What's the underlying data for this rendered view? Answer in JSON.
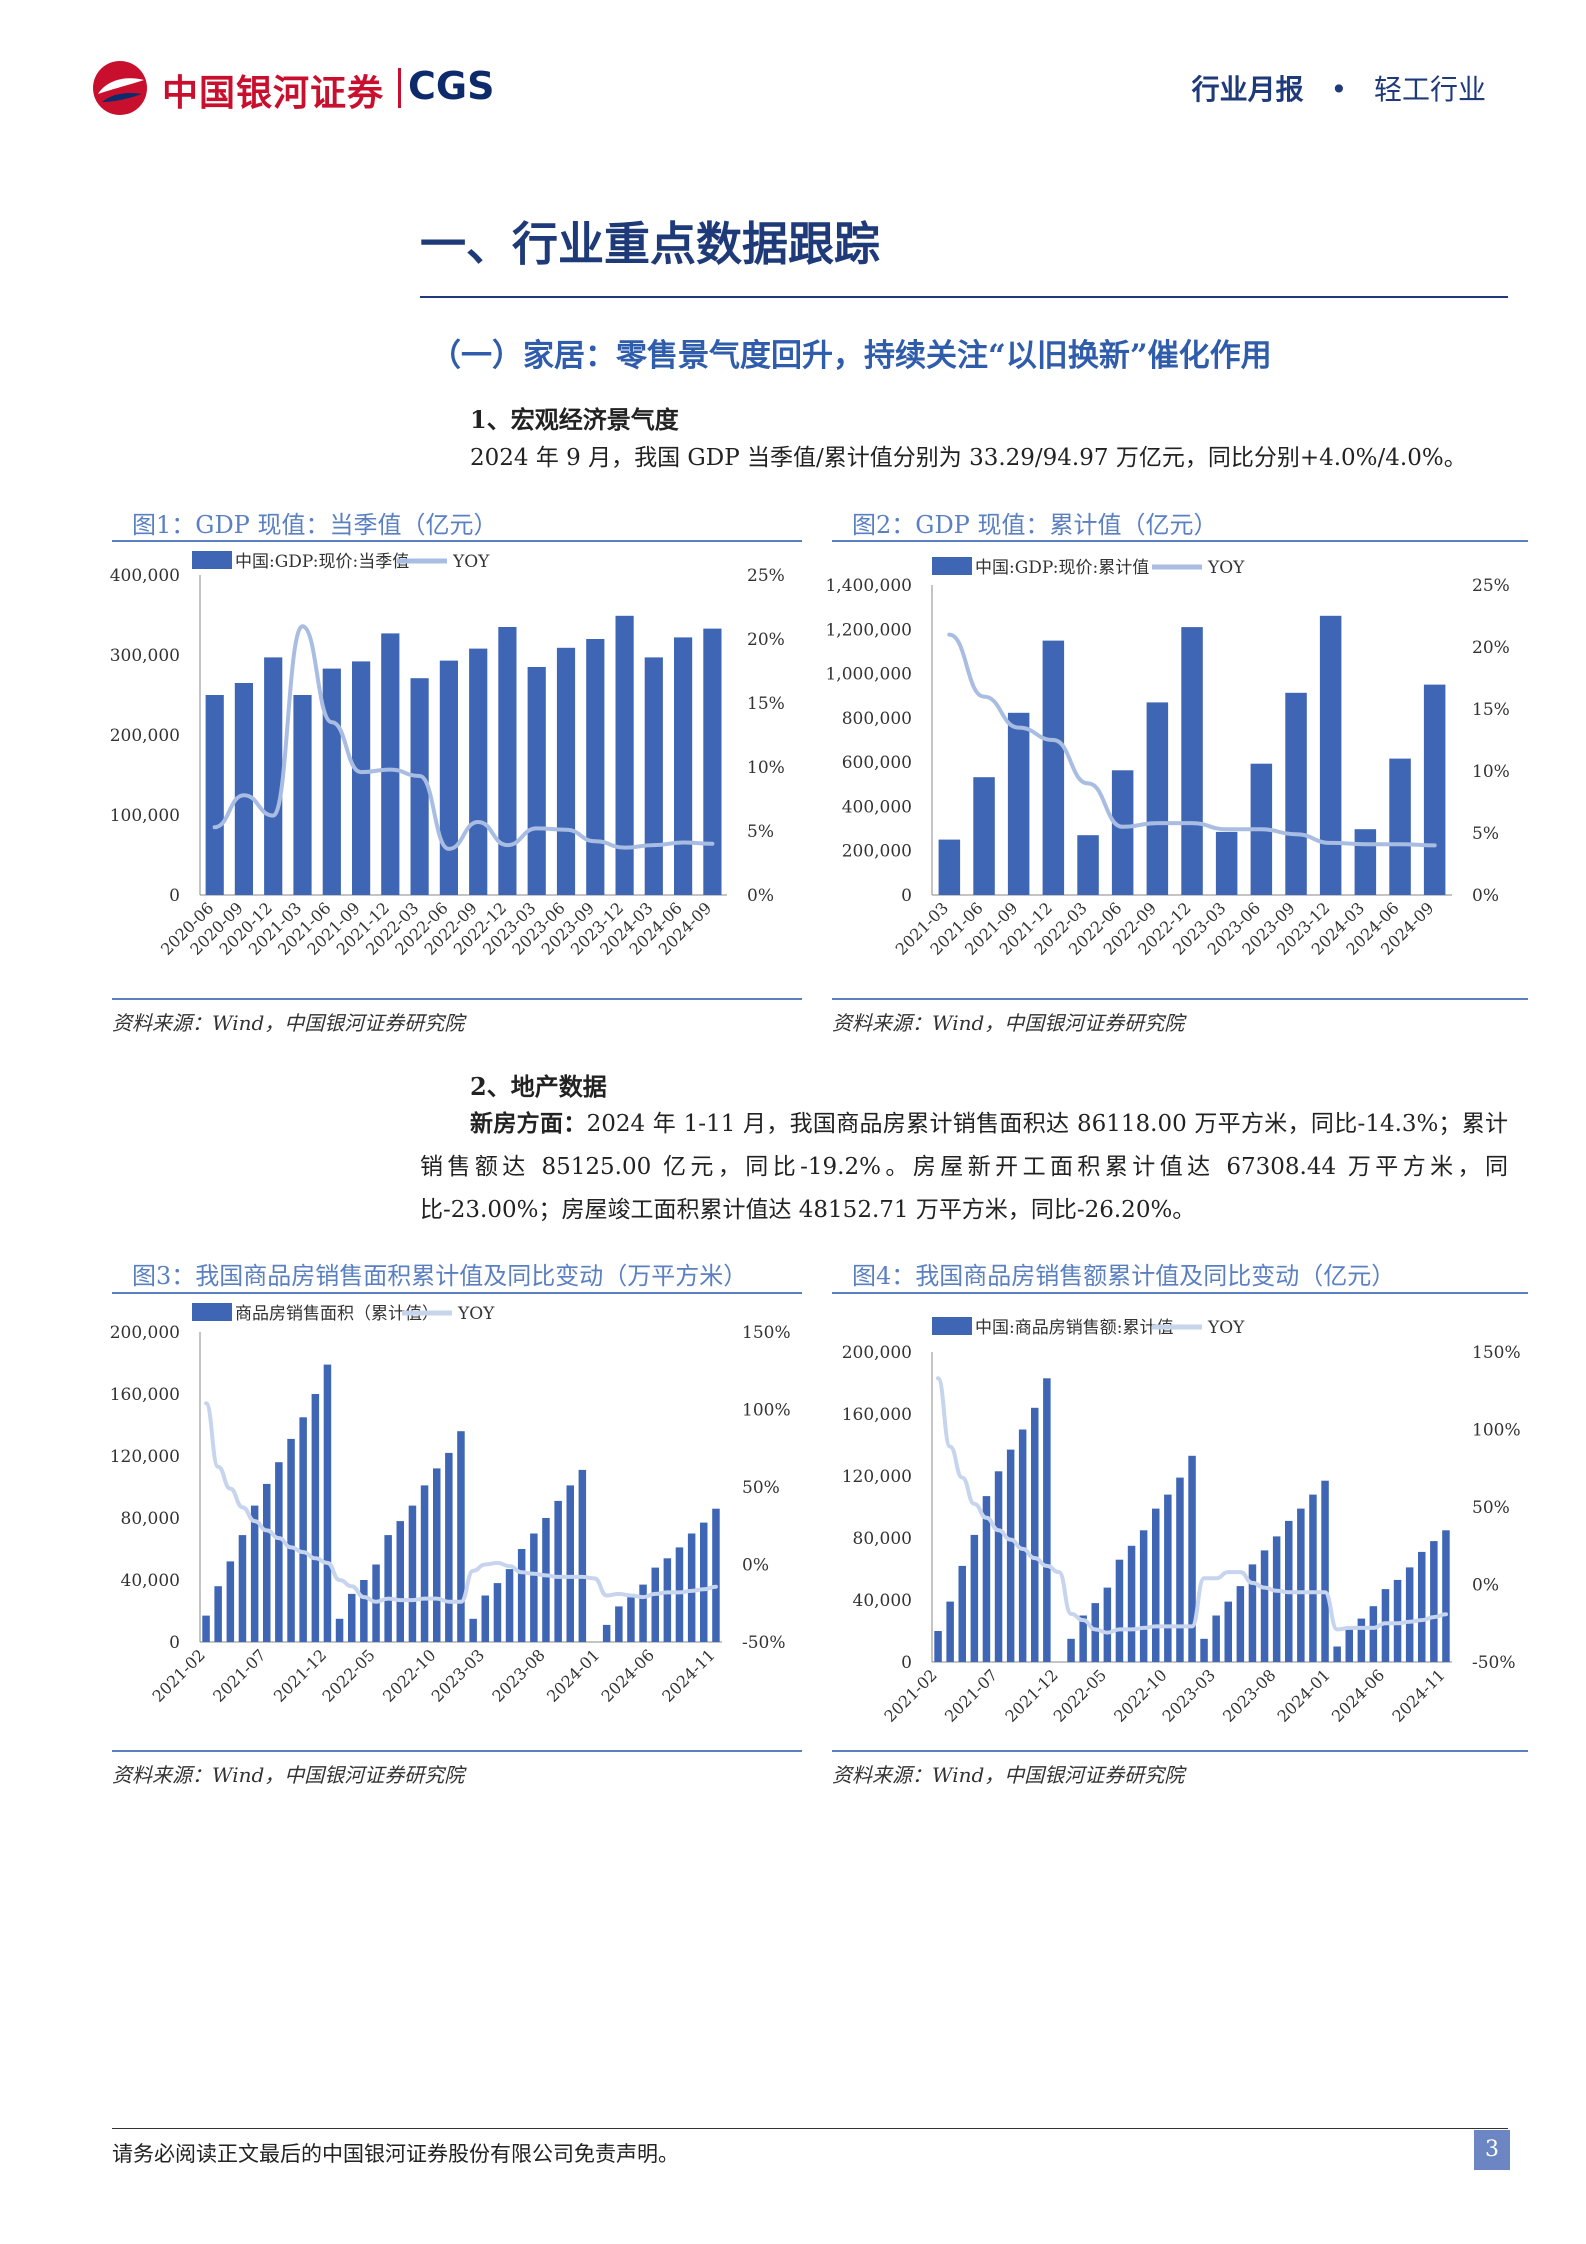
{
  "header": {
    "logo_cn": "中国银河证券",
    "logo_en": "CGS",
    "report_type": "行业月报",
    "dot": "•",
    "industry": "轻工行业"
  },
  "section1": {
    "title": "一、行业重点数据跟踪"
  },
  "section1_1": {
    "title": "（一）家居：零售景气度回升，持续关注“以旧换新”催化作用"
  },
  "sub1": {
    "title": "1、宏观经济景气度",
    "text": "2024 年 9 月，我国 GDP 当季值/累计值分别为 33.29/94.97 万亿元，同比分别+4.0%/4.0%。"
  },
  "fig1": {
    "title": "图1：GDP 现值：当季值（亿元）",
    "source": "资料来源：Wind，中国银河证券研究院"
  },
  "fig2": {
    "title": "图2：GDP 现值：累计值（亿元）",
    "source": "资料来源：Wind，中国银河证券研究院"
  },
  "sub2": {
    "title": "2、地产数据",
    "lead": "新房方面：",
    "text": "2024 年 1-11 月，我国商品房累计销售面积达 86118.00 万平方米，同比-14.3%；累计销售额达 85125.00 亿元，同比-19.2%。房屋新开工面积累计值达 67308.44 万平方米，同比-23.00%；房屋竣工面积累计值达 48152.71 万平方米，同比-26.20%。"
  },
  "fig3": {
    "title": "图3：我国商品房销售面积累计值及同比变动（万平方米）",
    "source": "资料来源：Wind，中国银河证券研究院"
  },
  "fig4": {
    "title": "图4：我国商品房销售额累计值及同比变动（亿元）",
    "source": "资料来源：Wind，中国银河证券研究院"
  },
  "footer": {
    "disclaimer": "请务必阅读正文最后的中国银河证券股份有限公司免责声明。",
    "page": "3"
  },
  "chart_data": [
    {
      "id": "chart1",
      "type": "bar",
      "bar_color": "#3f66b5",
      "line_color": "#a9bde3",
      "categories": [
        "2020-06",
        "2020-09",
        "2020-12",
        "2021-03",
        "2021-06",
        "2021-09",
        "2021-12",
        "2022-03",
        "2022-06",
        "2022-09",
        "2022-12",
        "2023-03",
        "2023-06",
        "2023-09",
        "2023-12",
        "2024-03",
        "2024-06",
        "2024-09"
      ],
      "series": [
        {
          "name": "中国:GDP:现价:当季值",
          "axis": "left",
          "kind": "bar",
          "values": [
            250000,
            265000,
            297000,
            250000,
            283000,
            292000,
            327000,
            271000,
            293000,
            308000,
            335000,
            285000,
            309000,
            320000,
            349000,
            297000,
            322000,
            333000
          ]
        },
        {
          "name": "YOY",
          "axis": "right",
          "kind": "line",
          "values": [
            5.3,
            7.8,
            6.2,
            21,
            13.5,
            9.6,
            9.8,
            9.3,
            3.6,
            5.7,
            3.9,
            5.2,
            5.1,
            4.2,
            3.7,
            3.9,
            4.1,
            4.0
          ]
        }
      ],
      "y_left": {
        "min": 0,
        "max": 400000,
        "ticks": [
          "0",
          "100,000",
          "200,000",
          "300,000",
          "400,000"
        ]
      },
      "y_right": {
        "min": 0,
        "max": 25,
        "ticks": [
          "0%",
          "5%",
          "10%",
          "15%",
          "20%",
          "25%"
        ]
      }
    },
    {
      "id": "chart2",
      "type": "bar",
      "bar_color": "#3f66b5",
      "line_color": "#a9bde3",
      "categories": [
        "2021-03",
        "2021-06",
        "2021-09",
        "2021-12",
        "2022-03",
        "2022-06",
        "2022-09",
        "2022-12",
        "2023-03",
        "2023-06",
        "2023-09",
        "2023-12",
        "2024-03",
        "2024-06",
        "2024-09"
      ],
      "series": [
        {
          "name": "中国:GDP:现价:累计值",
          "axis": "left",
          "kind": "bar",
          "values": [
            250000,
            532000,
            823000,
            1149000,
            270000,
            563000,
            870000,
            1210000,
            285000,
            593000,
            913000,
            1261000,
            297000,
            616000,
            950000
          ]
        },
        {
          "name": "YOY",
          "axis": "right",
          "kind": "line",
          "values": [
            21,
            16,
            13.5,
            12.5,
            9,
            5.5,
            5.8,
            5.8,
            5.3,
            5.3,
            4.9,
            4.2,
            4.1,
            4.1,
            4.0
          ]
        }
      ],
      "y_left": {
        "min": 0,
        "max": 1400000,
        "ticks": [
          "0",
          "200,000",
          "400,000",
          "600,000",
          "800,000",
          "1,000,000",
          "1,200,000",
          "1,400,000"
        ]
      },
      "y_right": {
        "min": 0,
        "max": 25,
        "ticks": [
          "0%",
          "5%",
          "10%",
          "15%",
          "20%",
          "25%"
        ]
      }
    },
    {
      "id": "chart3",
      "type": "bar",
      "bar_color": "#3f66b5",
      "line_color": "#c6d4ee",
      "categories": [
        "2021-02",
        "2021-03",
        "2021-04",
        "2021-05",
        "2021-06",
        "2021-07",
        "2021-08",
        "2021-09",
        "2021-10",
        "2021-11",
        "2021-12",
        "2022-02",
        "2022-03",
        "2022-04",
        "2022-05",
        "2022-06",
        "2022-07",
        "2022-08",
        "2022-09",
        "2022-10",
        "2022-11",
        "2022-12",
        "2023-02",
        "2023-03",
        "2023-04",
        "2023-05",
        "2023-06",
        "2023-07",
        "2023-08",
        "2023-09",
        "2023-10",
        "2023-11",
        "2023-12",
        "2024-02",
        "2024-03",
        "2024-04",
        "2024-05",
        "2024-06",
        "2024-07",
        "2024-08",
        "2024-09",
        "2024-10",
        "2024-11"
      ],
      "tick_labels": [
        "2021-02",
        "2021-07",
        "2021-12",
        "2022-05",
        "2022-10",
        "2023-03",
        "2023-08",
        "2024-01",
        "2024-06",
        "2024-11"
      ],
      "series": [
        {
          "name": "商品房销售面积（累计值）",
          "axis": "left",
          "kind": "bar",
          "values": [
            17000,
            36000,
            52000,
            69000,
            88000,
            102000,
            116000,
            131000,
            145000,
            160000,
            179000,
            15000,
            31000,
            40000,
            50000,
            69000,
            78000,
            88000,
            101000,
            112000,
            122000,
            136000,
            15000,
            30000,
            38000,
            47000,
            60000,
            70000,
            80000,
            91000,
            101000,
            111000,
            0,
            11000,
            23000,
            29000,
            37000,
            48000,
            54000,
            61000,
            70000,
            77000,
            86000
          ]
        },
        {
          "name": "YOY",
          "axis": "right",
          "kind": "line",
          "values": [
            104,
            63,
            49,
            37,
            28,
            22,
            17,
            11,
            8,
            4,
            1,
            -10,
            -14,
            -21,
            -24,
            -22,
            -23,
            -23,
            -22,
            -22,
            -24,
            -24,
            -4,
            0,
            1,
            -1,
            -5,
            -6,
            -7,
            -8,
            -8,
            -8,
            -9,
            -20,
            -19,
            -20,
            -21,
            -19,
            -18,
            -18,
            -17,
            -16,
            -14.3
          ]
        }
      ],
      "y_left": {
        "min": 0,
        "max": 200000,
        "ticks": [
          "0",
          "40,000",
          "80,000",
          "120,000",
          "160,000",
          "200,000"
        ]
      },
      "y_right": {
        "min": -50,
        "max": 150,
        "ticks": [
          "-50%",
          "0%",
          "50%",
          "100%",
          "150%"
        ]
      }
    },
    {
      "id": "chart4",
      "type": "bar",
      "bar_color": "#3f66b5",
      "line_color": "#c6d4ee",
      "categories": [
        "2021-02",
        "2021-03",
        "2021-04",
        "2021-05",
        "2021-06",
        "2021-07",
        "2021-08",
        "2021-09",
        "2021-10",
        "2021-11",
        "2021-12",
        "2022-02",
        "2022-03",
        "2022-04",
        "2022-05",
        "2022-06",
        "2022-07",
        "2022-08",
        "2022-09",
        "2022-10",
        "2022-11",
        "2022-12",
        "2023-02",
        "2023-03",
        "2023-04",
        "2023-05",
        "2023-06",
        "2023-07",
        "2023-08",
        "2023-09",
        "2023-10",
        "2023-11",
        "2023-12",
        "2024-02",
        "2024-03",
        "2024-04",
        "2024-05",
        "2024-06",
        "2024-07",
        "2024-08",
        "2024-09",
        "2024-10",
        "2024-11"
      ],
      "tick_labels": [
        "2021-02",
        "2021-07",
        "2021-12",
        "2022-05",
        "2022-10",
        "2023-03",
        "2023-08",
        "2024-01",
        "2024-06",
        "2024-11"
      ],
      "series": [
        {
          "name": "中国:商品房销售额:累计值",
          "axis": "left",
          "kind": "bar",
          "values": [
            20000,
            39000,
            62000,
            82000,
            107000,
            123000,
            137000,
            150000,
            164000,
            183000,
            0,
            15000,
            30000,
            38000,
            48000,
            66000,
            75000,
            85000,
            99000,
            108000,
            119000,
            133000,
            15000,
            30000,
            39000,
            49000,
            63000,
            72000,
            81000,
            91000,
            99000,
            108000,
            117000,
            10000,
            21000,
            28000,
            36000,
            47000,
            53000,
            61000,
            71000,
            78000,
            85000
          ]
        },
        {
          "name": "YOY",
          "axis": "right",
          "kind": "line",
          "values": [
            133,
            89,
            69,
            52,
            43,
            35,
            29,
            23,
            17,
            12,
            8,
            -19,
            -23,
            -29,
            -31,
            -29,
            -29,
            -28,
            -27,
            -27,
            -27,
            -27,
            4,
            4,
            8,
            8,
            1,
            -2,
            -4,
            -5,
            -5,
            -5,
            -5,
            -29,
            -28,
            -28,
            -28,
            -25,
            -25,
            -24,
            -23,
            -21,
            -19.2
          ]
        }
      ],
      "y_left": {
        "min": 0,
        "max": 200000,
        "ticks": [
          "0",
          "40,000",
          "80,000",
          "120,000",
          "160,000",
          "200,000"
        ]
      },
      "y_right": {
        "min": -50,
        "max": 150,
        "ticks": [
          "-50%",
          "0%",
          "50%",
          "100%",
          "150%"
        ]
      }
    }
  ]
}
